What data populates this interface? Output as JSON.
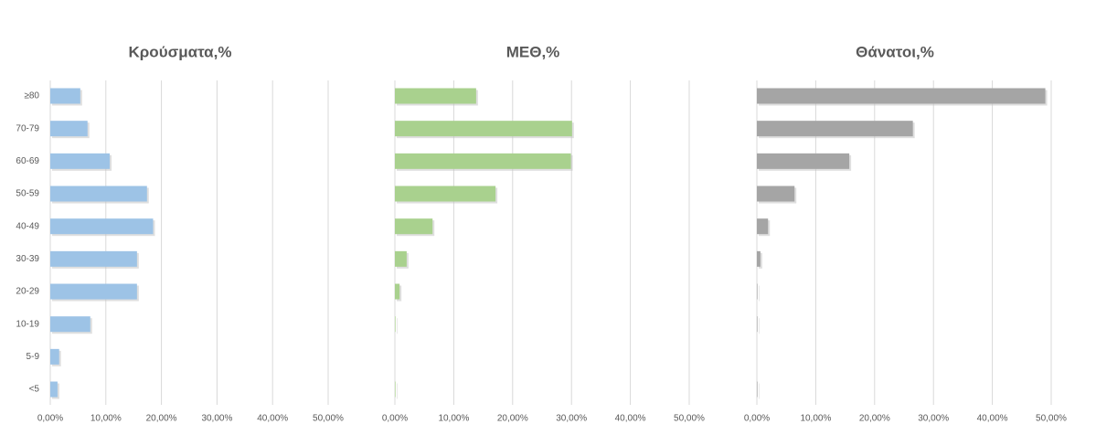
{
  "chart_data": [
    {
      "type": "bar",
      "orientation": "horizontal",
      "title": "Κρούσματα,%",
      "categories": [
        "≥80",
        "70-79",
        "60-69",
        "50-59",
        "40-49",
        "30-39",
        "20-29",
        "10-19",
        "5-9",
        "<5"
      ],
      "values": [
        5.4,
        6.7,
        10.7,
        17.4,
        18.5,
        15.6,
        15.6,
        7.2,
        1.6,
        1.3
      ],
      "color": "#9dc3e6",
      "xlim": [
        0,
        50
      ],
      "xticks": [
        {
          "value": 0,
          "label": "0,00%"
        },
        {
          "value": 10,
          "label": "10,00%"
        },
        {
          "value": 20,
          "label": "20,00%"
        },
        {
          "value": 30,
          "label": "30,00%"
        },
        {
          "value": 40,
          "label": "40,00%"
        },
        {
          "value": 50,
          "label": "50,00%"
        }
      ],
      "grid": true
    },
    {
      "type": "bar",
      "orientation": "horizontal",
      "title": "ΜΕΘ,%",
      "categories": [
        null,
        null,
        null,
        null,
        null,
        null,
        null,
        null,
        null,
        null
      ],
      "values": [
        13.8,
        30.1,
        29.9,
        17.1,
        6.4,
        2.0,
        0.8,
        0.1,
        0,
        0.1
      ],
      "color": "#a9d18e",
      "xlim": [
        0,
        50
      ],
      "xticks": [
        {
          "value": 0,
          "label": "0,00%"
        },
        {
          "value": 10,
          "label": "10,00%"
        },
        {
          "value": 20,
          "label": "20,00%"
        },
        {
          "value": 30,
          "label": "30,00%"
        },
        {
          "value": 40,
          "label": "40,00%"
        },
        {
          "value": 50,
          "label": "50,00%"
        }
      ],
      "grid": true
    },
    {
      "type": "bar",
      "orientation": "horizontal",
      "title": "Θάνατοι,%",
      "categories": [
        null,
        null,
        null,
        null,
        null,
        null,
        null,
        null,
        null,
        null
      ],
      "values": [
        49.0,
        26.5,
        15.7,
        6.4,
        1.9,
        0.6,
        0.1,
        0.1,
        0,
        0.1
      ],
      "color": "#a5a5a5",
      "xlim": [
        0,
        50
      ],
      "xticks": [
        {
          "value": 0,
          "label": "0,00%"
        },
        {
          "value": 10,
          "label": "10,00%"
        },
        {
          "value": 20,
          "label": "20,00%"
        },
        {
          "value": 30,
          "label": "30,00%"
        },
        {
          "value": 40,
          "label": "40,00%"
        },
        {
          "value": 50,
          "label": "50,00%"
        }
      ],
      "grid": true
    }
  ]
}
